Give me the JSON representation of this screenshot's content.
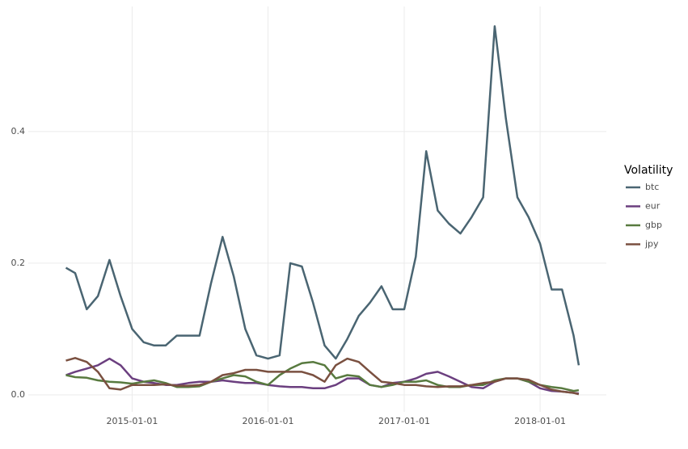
{
  "chart_data": {
    "type": "line",
    "legend_title": "Volatility",
    "legend_position": "right",
    "grid": true,
    "x": [
      "2014-07-07",
      "2014-08-01",
      "2014-09-01",
      "2014-10-01",
      "2014-11-01",
      "2014-12-01",
      "2015-01-01",
      "2015-02-01",
      "2015-03-01",
      "2015-04-01",
      "2015-05-01",
      "2015-06-01",
      "2015-07-01",
      "2015-08-01",
      "2015-09-01",
      "2015-10-01",
      "2015-11-01",
      "2015-12-01",
      "2016-01-01",
      "2016-02-01",
      "2016-03-01",
      "2016-04-01",
      "2016-05-01",
      "2016-06-01",
      "2016-07-01",
      "2016-08-01",
      "2016-09-01",
      "2016-10-01",
      "2016-11-01",
      "2016-12-01",
      "2017-01-01",
      "2017-02-01",
      "2017-03-01",
      "2017-04-01",
      "2017-05-01",
      "2017-06-01",
      "2017-07-01",
      "2017-08-01",
      "2017-09-01",
      "2017-10-01",
      "2017-11-01",
      "2017-12-01",
      "2018-01-01",
      "2018-02-01",
      "2018-03-01",
      "2018-04-01",
      "2018-04-15"
    ],
    "series": [
      {
        "name": "btc",
        "color": "#4a6572",
        "values": [
          0.193,
          0.185,
          0.13,
          0.15,
          0.205,
          0.15,
          0.1,
          0.08,
          0.075,
          0.075,
          0.09,
          0.09,
          0.09,
          0.17,
          0.24,
          0.18,
          0.1,
          0.06,
          0.055,
          0.06,
          0.2,
          0.195,
          0.14,
          0.075,
          0.055,
          0.085,
          0.12,
          0.14,
          0.165,
          0.13,
          0.13,
          0.21,
          0.37,
          0.28,
          0.26,
          0.245,
          0.27,
          0.3,
          0.56,
          0.42,
          0.3,
          0.27,
          0.23,
          0.16,
          0.16,
          0.09,
          0.045
        ]
      },
      {
        "name": "eur",
        "color": "#6b3f7f",
        "values": [
          0.03,
          0.035,
          0.04,
          0.045,
          0.055,
          0.045,
          0.025,
          0.02,
          0.018,
          0.015,
          0.015,
          0.018,
          0.02,
          0.02,
          0.022,
          0.02,
          0.018,
          0.018,
          0.015,
          0.013,
          0.012,
          0.012,
          0.01,
          0.01,
          0.015,
          0.025,
          0.025,
          0.015,
          0.012,
          0.018,
          0.02,
          0.025,
          0.032,
          0.035,
          0.028,
          0.02,
          0.012,
          0.01,
          0.02,
          0.025,
          0.025,
          0.02,
          0.01,
          0.006,
          0.005,
          0.003,
          0.002
        ]
      },
      {
        "name": "gbp",
        "color": "#587a3f",
        "values": [
          0.03,
          0.027,
          0.026,
          0.022,
          0.02,
          0.019,
          0.017,
          0.02,
          0.022,
          0.018,
          0.012,
          0.012,
          0.013,
          0.02,
          0.025,
          0.03,
          0.028,
          0.02,
          0.015,
          0.03,
          0.04,
          0.048,
          0.05,
          0.045,
          0.025,
          0.03,
          0.028,
          0.015,
          0.012,
          0.015,
          0.02,
          0.02,
          0.022,
          0.015,
          0.012,
          0.012,
          0.015,
          0.015,
          0.022,
          0.025,
          0.025,
          0.02,
          0.015,
          0.012,
          0.01,
          0.006,
          0.007
        ]
      },
      {
        "name": "jpy",
        "color": "#7a5040",
        "values": [
          0.052,
          0.056,
          0.05,
          0.035,
          0.01,
          0.008,
          0.015,
          0.015,
          0.015,
          0.016,
          0.014,
          0.014,
          0.015,
          0.02,
          0.03,
          0.033,
          0.038,
          0.038,
          0.035,
          0.035,
          0.035,
          0.035,
          0.03,
          0.02,
          0.045,
          0.055,
          0.05,
          0.035,
          0.02,
          0.018,
          0.015,
          0.015,
          0.013,
          0.012,
          0.013,
          0.013,
          0.015,
          0.018,
          0.02,
          0.025,
          0.025,
          0.023,
          0.015,
          0.008,
          0.005,
          0.003,
          0.001
        ]
      }
    ],
    "xlim": [
      "2014-03-28",
      "2018-06-28"
    ],
    "xticks": [
      "2015-01-01",
      "2016-01-01",
      "2017-01-01",
      "2018-01-01"
    ],
    "ylim": [
      -0.0258,
      0.59
    ],
    "yticks": [
      {
        "value": 0,
        "label": "0.0"
      },
      0.2,
      0.4
    ]
  }
}
